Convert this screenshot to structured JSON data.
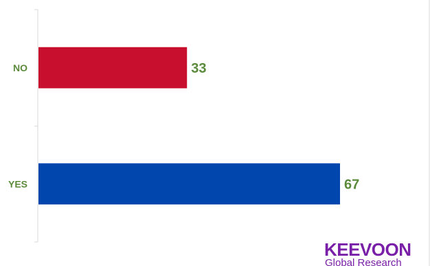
{
  "chart_data": {
    "type": "bar",
    "orientation": "horizontal",
    "categories": [
      "NO",
      "YES"
    ],
    "values": [
      33,
      67
    ],
    "colors": [
      "#c8102e",
      "#0046ad"
    ],
    "xlim": [
      0,
      80
    ],
    "title": "",
    "xlabel": "",
    "ylabel": "",
    "grid": false
  },
  "colors": {
    "label_text": "#5a8a3a",
    "axis": "#d9d9d9",
    "logo": "#7a1fa8"
  },
  "logo": {
    "name": "KEEVOON",
    "tagline": "Global Research"
  }
}
